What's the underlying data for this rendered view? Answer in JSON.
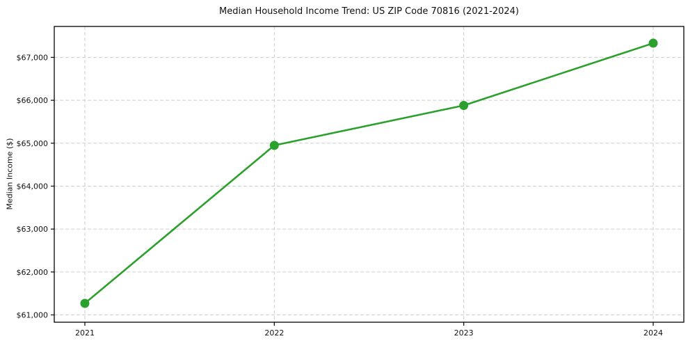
{
  "figure": {
    "background": "#ffffff",
    "text_color": "#111111"
  },
  "chart_data": {
    "type": "line",
    "title": "Median Household Income Trend: US ZIP Code 70816 (2021-2024)",
    "xlabel": "",
    "ylabel": "Median Income ($)",
    "categories": [
      "2021",
      "2022",
      "2023",
      "2024"
    ],
    "series": [
      {
        "name": "Median Household Income",
        "values": [
          61270,
          64950,
          65880,
          67330
        ]
      }
    ],
    "x_tick_labels": [
      "2021",
      "2022",
      "2023",
      "2024"
    ],
    "y_ticks": [
      61000,
      62000,
      63000,
      64000,
      65000,
      66000,
      67000
    ],
    "y_tick_labels": [
      "$61,000",
      "$62,000",
      "$63,000",
      "$64,000",
      "$65,000",
      "$66,000",
      "$67,000"
    ],
    "ylim": [
      60830,
      67720
    ],
    "grid": true,
    "grid_style": "dashed",
    "grid_color": "#cfcfcf",
    "line_color": "#2ca02c",
    "marker": "circle",
    "marker_color": "#2ca02c",
    "frame_color": "#000000",
    "legend": "none"
  }
}
